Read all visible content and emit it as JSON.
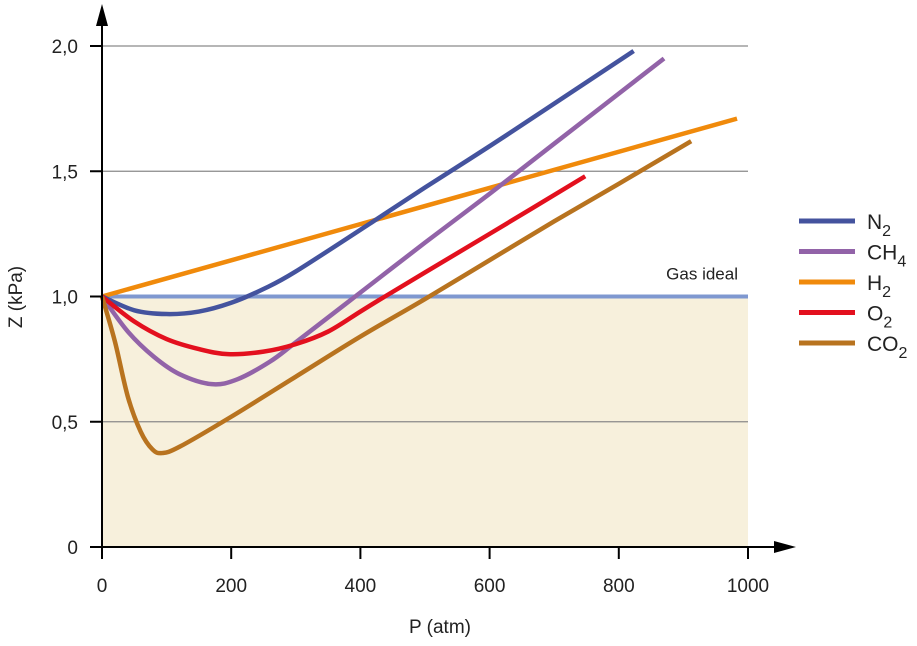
{
  "chart_data": {
    "type": "line",
    "title": "",
    "xlabel": "P (atm)",
    "ylabel": "Z (kPa)",
    "xlim": [
      0,
      1000
    ],
    "ylim": [
      0,
      2.0
    ],
    "x_ticks": [
      "0",
      "200",
      "400",
      "600",
      "800",
      "1000"
    ],
    "x_tick_values": [
      0,
      200,
      400,
      600,
      800,
      1000
    ],
    "y_ticks": [
      "0",
      "0,5",
      "1,0",
      "1,5",
      "2,0"
    ],
    "y_tick_values": [
      0,
      0.5,
      1.0,
      1.5,
      2.0
    ],
    "grid": "horizontal",
    "legend_position": "right",
    "shaded_region": {
      "y_range": [
        0,
        1.0
      ],
      "color": "#f7f0dc"
    },
    "reference_line": {
      "label": "Gas ideal",
      "y": 1.0,
      "color": "#7f98d0"
    },
    "series": [
      {
        "name": "N",
        "sub": "2",
        "color": "#44539e",
        "points": [
          [
            0,
            1
          ],
          [
            50,
            0.945
          ],
          [
            100,
            0.93
          ],
          [
            150,
            0.94
          ],
          [
            200,
            0.975
          ],
          [
            250,
            1.03
          ],
          [
            300,
            1.1
          ],
          [
            420,
            1.3
          ],
          [
            500,
            1.435
          ],
          [
            600,
            1.6
          ],
          [
            700,
            1.77
          ],
          [
            823,
            1.98
          ]
        ]
      },
      {
        "name": "CH",
        "sub": "4",
        "color": "#9263a8",
        "points": [
          [
            0,
            1
          ],
          [
            40,
            0.86
          ],
          [
            80,
            0.76
          ],
          [
            120,
            0.69
          ],
          [
            170,
            0.65
          ],
          [
            210,
            0.67
          ],
          [
            260,
            0.74
          ],
          [
            300,
            0.817
          ],
          [
            392,
            1.0
          ],
          [
            500,
            1.215
          ],
          [
            600,
            1.41
          ],
          [
            700,
            1.61
          ],
          [
            870,
            1.95
          ]
        ]
      },
      {
        "name": "H",
        "sub": "2",
        "color": "#f08a0b",
        "points": [
          [
            0,
            1
          ],
          [
            983,
            1.71
          ]
        ]
      },
      {
        "name": "O",
        "sub": "2",
        "color": "#e3101e",
        "points": [
          [
            0,
            1
          ],
          [
            50,
            0.9
          ],
          [
            100,
            0.83
          ],
          [
            150,
            0.79
          ],
          [
            195,
            0.77
          ],
          [
            250,
            0.78
          ],
          [
            300,
            0.81
          ],
          [
            350,
            0.86
          ],
          [
            400,
            0.94
          ],
          [
            438,
            1.0
          ],
          [
            500,
            1.096
          ],
          [
            600,
            1.25
          ],
          [
            748,
            1.48
          ]
        ]
      },
      {
        "name": "CO",
        "sub": "2",
        "color": "#b8731f",
        "points": [
          [
            0,
            1
          ],
          [
            20,
            0.82
          ],
          [
            40,
            0.6
          ],
          [
            60,
            0.46
          ],
          [
            78,
            0.39
          ],
          [
            93,
            0.375
          ],
          [
            120,
            0.4
          ],
          [
            200,
            0.52
          ],
          [
            300,
            0.68
          ],
          [
            400,
            0.84
          ],
          [
            500,
            0.99
          ],
          [
            600,
            1.145
          ],
          [
            700,
            1.3
          ],
          [
            800,
            1.45
          ],
          [
            912,
            1.62
          ]
        ]
      }
    ]
  }
}
